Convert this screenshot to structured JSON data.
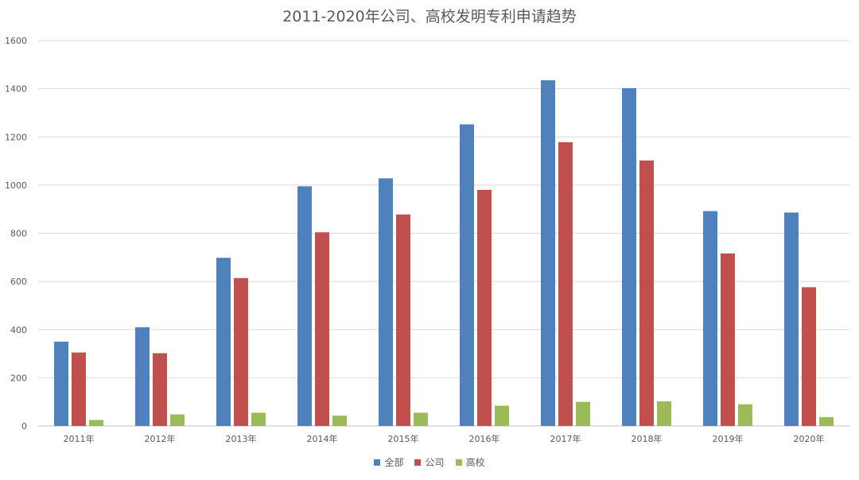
{
  "chart_data": {
    "type": "bar",
    "title": "2011-2020年公司、高校发明专利申请趋势",
    "xlabel": "",
    "ylabel": "",
    "ylim": [
      0,
      1600
    ],
    "yticks": [
      0,
      200,
      400,
      600,
      800,
      1000,
      1200,
      1400,
      1600
    ],
    "grid": true,
    "legend_position": "bottom",
    "categories": [
      "2011年",
      "2012年",
      "2013年",
      "2014年",
      "2015年",
      "2016年",
      "2017年",
      "2018年",
      "2019年",
      "2020年"
    ],
    "series": [
      {
        "name": "全部",
        "color": "#4F81BD",
        "values": [
          350,
          410,
          698,
          995,
          1028,
          1252,
          1435,
          1402,
          892,
          886
        ]
      },
      {
        "name": "公司",
        "color": "#C0504D",
        "values": [
          305,
          302,
          614,
          804,
          878,
          980,
          1178,
          1102,
          716,
          576
        ]
      },
      {
        "name": "高校",
        "color": "#9BBB59",
        "values": [
          25,
          48,
          55,
          43,
          55,
          84,
          100,
          102,
          90,
          37
        ]
      }
    ]
  }
}
